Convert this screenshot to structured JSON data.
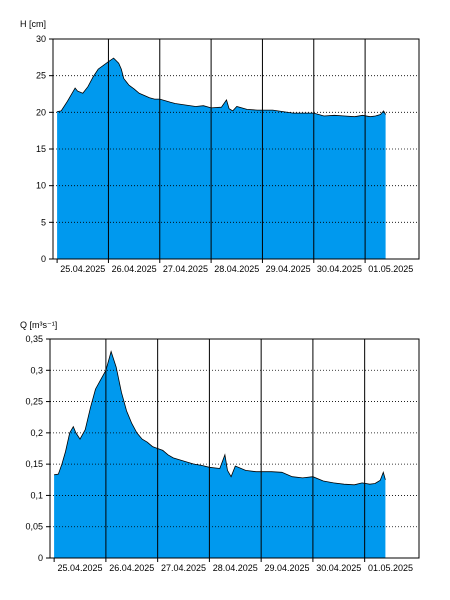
{
  "colors": {
    "fill": "#0099EE",
    "line": "#000000",
    "grid": "#000000",
    "background": "#FFFFFF"
  },
  "chart_data": [
    {
      "type": "area",
      "title": "",
      "ylabel": "H [cm]",
      "xlabel": "",
      "ylim": [
        0,
        30
      ],
      "y_ticks": [
        "0",
        "5",
        "10",
        "15",
        "20",
        "25",
        "30"
      ],
      "y_tick_values": [
        0,
        5,
        10,
        15,
        20,
        25,
        30
      ],
      "x_tick_labels": [
        "25.04.2025",
        "26.04.2025",
        "27.04.2025",
        "28.04.2025",
        "29.04.2025",
        "30.04.2025",
        "01.05.2025"
      ],
      "xlim_days": [
        -0.08,
        7.05
      ],
      "grid": "dotted horizontal, solid vertical at midnight",
      "series": [
        {
          "x_days": [
            0,
            0.08,
            0.2,
            0.35,
            0.4,
            0.5,
            0.6,
            0.7,
            0.8,
            0.9,
            1.0,
            1.1,
            1.2,
            1.25,
            1.3,
            1.4,
            1.5,
            1.6,
            1.7,
            1.8,
            1.9,
            2.0,
            2.1,
            2.2,
            2.3,
            2.5,
            2.7,
            2.85,
            3.0,
            3.2,
            3.3,
            3.35,
            3.42,
            3.5,
            3.7,
            3.9,
            4.2,
            4.4,
            4.6,
            4.8,
            5.0,
            5.2,
            5.4,
            5.6,
            5.8,
            5.95,
            6.1,
            6.2,
            6.3,
            6.36,
            6.4
          ],
          "values": [
            20.1,
            20.2,
            21.5,
            23.3,
            22.9,
            22.6,
            23.5,
            24.8,
            25.9,
            26.4,
            26.9,
            27.4,
            26.7,
            25.9,
            24.6,
            23.7,
            23.2,
            22.6,
            22.3,
            22.0,
            21.8,
            21.8,
            21.6,
            21.4,
            21.2,
            21.0,
            20.8,
            20.9,
            20.6,
            20.7,
            21.7,
            20.5,
            20.2,
            20.8,
            20.4,
            20.3,
            20.3,
            20.1,
            19.9,
            19.9,
            19.9,
            19.5,
            19.6,
            19.5,
            19.4,
            19.6,
            19.4,
            19.5,
            19.7,
            20.2,
            19.7
          ]
        }
      ]
    },
    {
      "type": "area",
      "title": "",
      "ylabel": "Q [m³s⁻¹]",
      "xlabel": "",
      "ylim": [
        0,
        0.35
      ],
      "y_ticks": [
        "0",
        "0,05",
        "0,1",
        "0,15",
        "0,2",
        "0,25",
        "0,3",
        "0,35"
      ],
      "y_tick_values": [
        0,
        0.05,
        0.1,
        0.15,
        0.2,
        0.25,
        0.3,
        0.35
      ],
      "x_tick_labels": [
        "25.04.2025",
        "26.04.2025",
        "27.04.2025",
        "28.04.2025",
        "29.04.2025",
        "30.04.2025",
        "01.05.2025"
      ],
      "xlim_days": [
        -0.08,
        7.05
      ],
      "grid": "dotted horizontal, solid vertical at midnight",
      "series": [
        {
          "x_days": [
            0,
            0.08,
            0.15,
            0.22,
            0.3,
            0.37,
            0.42,
            0.5,
            0.6,
            0.7,
            0.8,
            0.9,
            1.0,
            1.1,
            1.2,
            1.25,
            1.3,
            1.4,
            1.5,
            1.6,
            1.7,
            1.8,
            1.9,
            2.0,
            2.1,
            2.2,
            2.3,
            2.5,
            2.7,
            2.85,
            3.0,
            3.2,
            3.3,
            3.35,
            3.42,
            3.5,
            3.7,
            3.9,
            4.2,
            4.4,
            4.6,
            4.8,
            5.0,
            5.2,
            5.4,
            5.6,
            5.8,
            5.95,
            6.1,
            6.2,
            6.3,
            6.36,
            6.4
          ],
          "values": [
            0.133,
            0.134,
            0.15,
            0.17,
            0.2,
            0.21,
            0.2,
            0.19,
            0.205,
            0.24,
            0.27,
            0.285,
            0.3,
            0.33,
            0.305,
            0.285,
            0.265,
            0.235,
            0.215,
            0.2,
            0.19,
            0.185,
            0.178,
            0.175,
            0.172,
            0.165,
            0.16,
            0.155,
            0.15,
            0.148,
            0.145,
            0.143,
            0.165,
            0.14,
            0.13,
            0.147,
            0.14,
            0.138,
            0.138,
            0.137,
            0.13,
            0.128,
            0.13,
            0.123,
            0.12,
            0.118,
            0.117,
            0.12,
            0.118,
            0.119,
            0.124,
            0.137,
            0.125
          ]
        }
      ]
    }
  ]
}
